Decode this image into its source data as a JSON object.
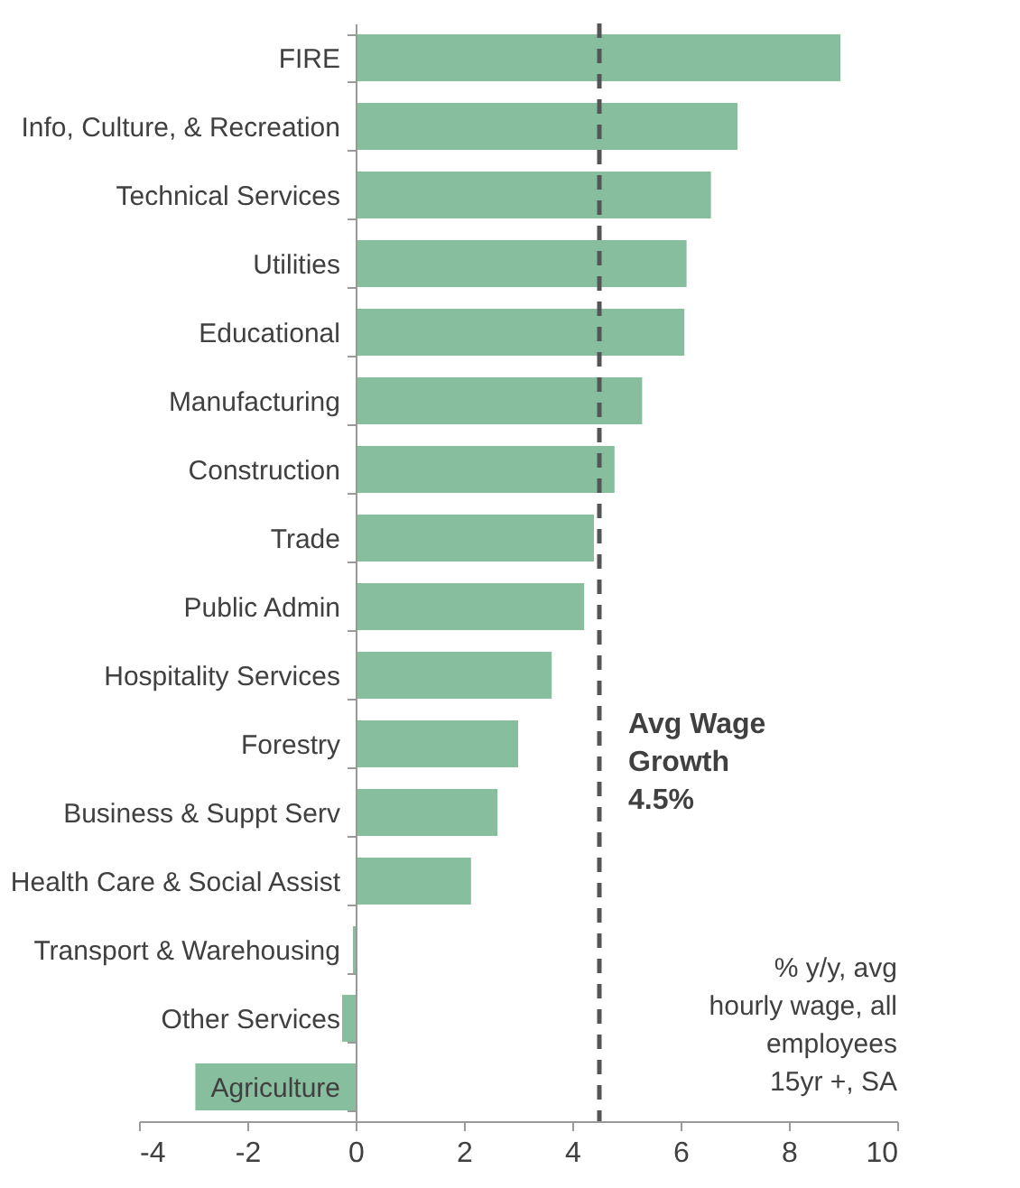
{
  "chart_data": {
    "type": "bar",
    "orientation": "horizontal",
    "categories": [
      "FIRE",
      "Info, Culture, & Recreation",
      "Technical Services",
      "Utilities",
      "Educational",
      "Manufacturing",
      "Construction",
      "Trade",
      "Public Admin",
      "Hospitality Services",
      "Forestry",
      "Business & Suppt Serv",
      "Health Care & Social Assist",
      "Transport & Warehousing",
      "Other Services",
      "Agriculture"
    ],
    "values": [
      8.95,
      7.05,
      6.56,
      6.11,
      6.07,
      5.29,
      4.78,
      4.4,
      4.22,
      3.62,
      3.0,
      2.62,
      2.13,
      -0.05,
      -0.25,
      -2.96
    ],
    "color": "#87be9d",
    "xlim": [
      -4,
      10
    ],
    "xticks": [
      -4,
      -2,
      0,
      2,
      4,
      6,
      8,
      10
    ],
    "grid": false,
    "ref_lines": [
      {
        "axis": "x",
        "value": 4.5,
        "label": "Avg Wage\nGrowth\n4.5%",
        "color": "#555555",
        "line_style": "dashed"
      }
    ],
    "annotations": [
      "% y/y, avg\nhourly wage, all\nemployees\n15yr +, SA"
    ]
  }
}
